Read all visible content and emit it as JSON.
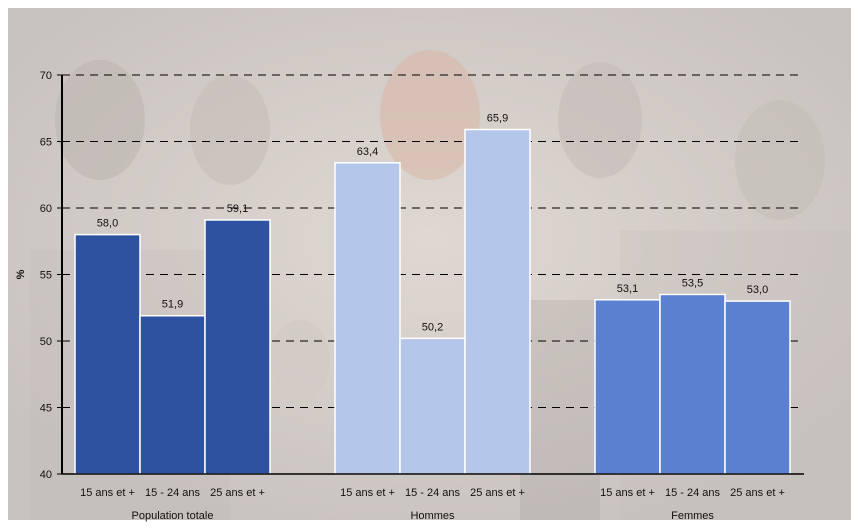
{
  "chart_data": {
    "type": "bar",
    "ylabel": "%",
    "ylim": [
      40,
      70
    ],
    "yticks": [
      40,
      45,
      50,
      55,
      60,
      65,
      70
    ],
    "ytick_labels": [
      "40",
      "45",
      "50",
      "55",
      "60",
      "65",
      "70"
    ],
    "grid": "dashed horizontal",
    "groups": [
      {
        "name": "Population totale",
        "color": "#2e52a0",
        "categories": [
          "15 ans et +",
          "15 - 24 ans",
          "25 ans et +"
        ],
        "values": [
          58.0,
          51.9,
          59.1
        ],
        "value_labels": [
          "58,0",
          "51,9",
          "59,1"
        ]
      },
      {
        "name": "Hommes",
        "color": "#b4c6ea",
        "categories": [
          "15 ans et +",
          "15 - 24 ans",
          "25 ans et +"
        ],
        "values": [
          63.4,
          50.2,
          65.9
        ],
        "value_labels": [
          "63,4",
          "50,2",
          "65,9"
        ]
      },
      {
        "name": "Femmes",
        "color": "#5b80cf",
        "categories": [
          "15 ans et +",
          "15 - 24 ans",
          "25 ans et +"
        ],
        "values": [
          53.1,
          53.5,
          53.0
        ],
        "value_labels": [
          "53,1",
          "53,5",
          "53,0"
        ]
      }
    ]
  }
}
